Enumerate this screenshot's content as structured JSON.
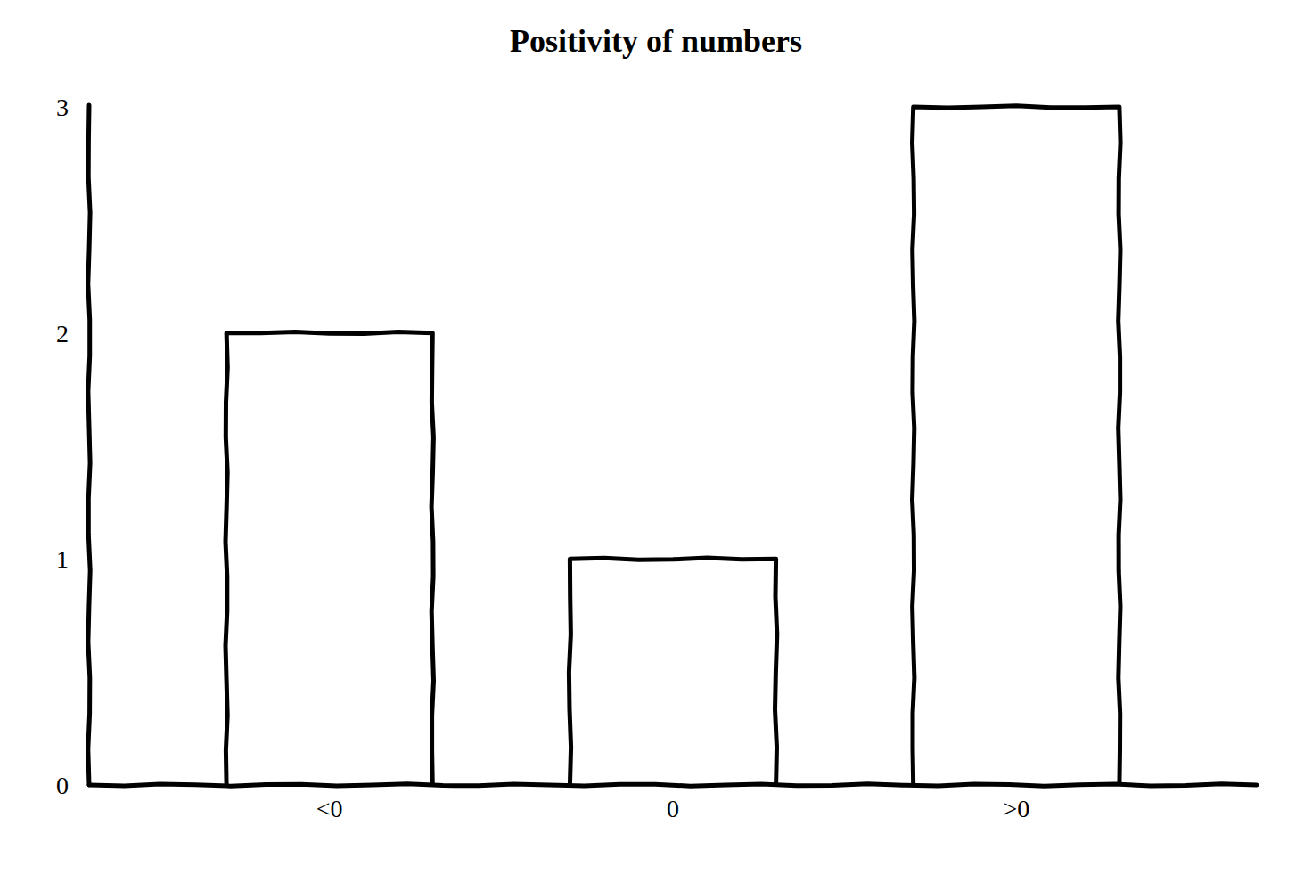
{
  "chart_data": {
    "type": "bar",
    "title": "Positivity of numbers",
    "categories": [
      "<0",
      "0",
      ">0"
    ],
    "values": [
      2,
      1,
      3
    ],
    "ylim": [
      0,
      3
    ],
    "yticks": [
      0,
      1,
      2,
      3
    ],
    "grid": false
  }
}
